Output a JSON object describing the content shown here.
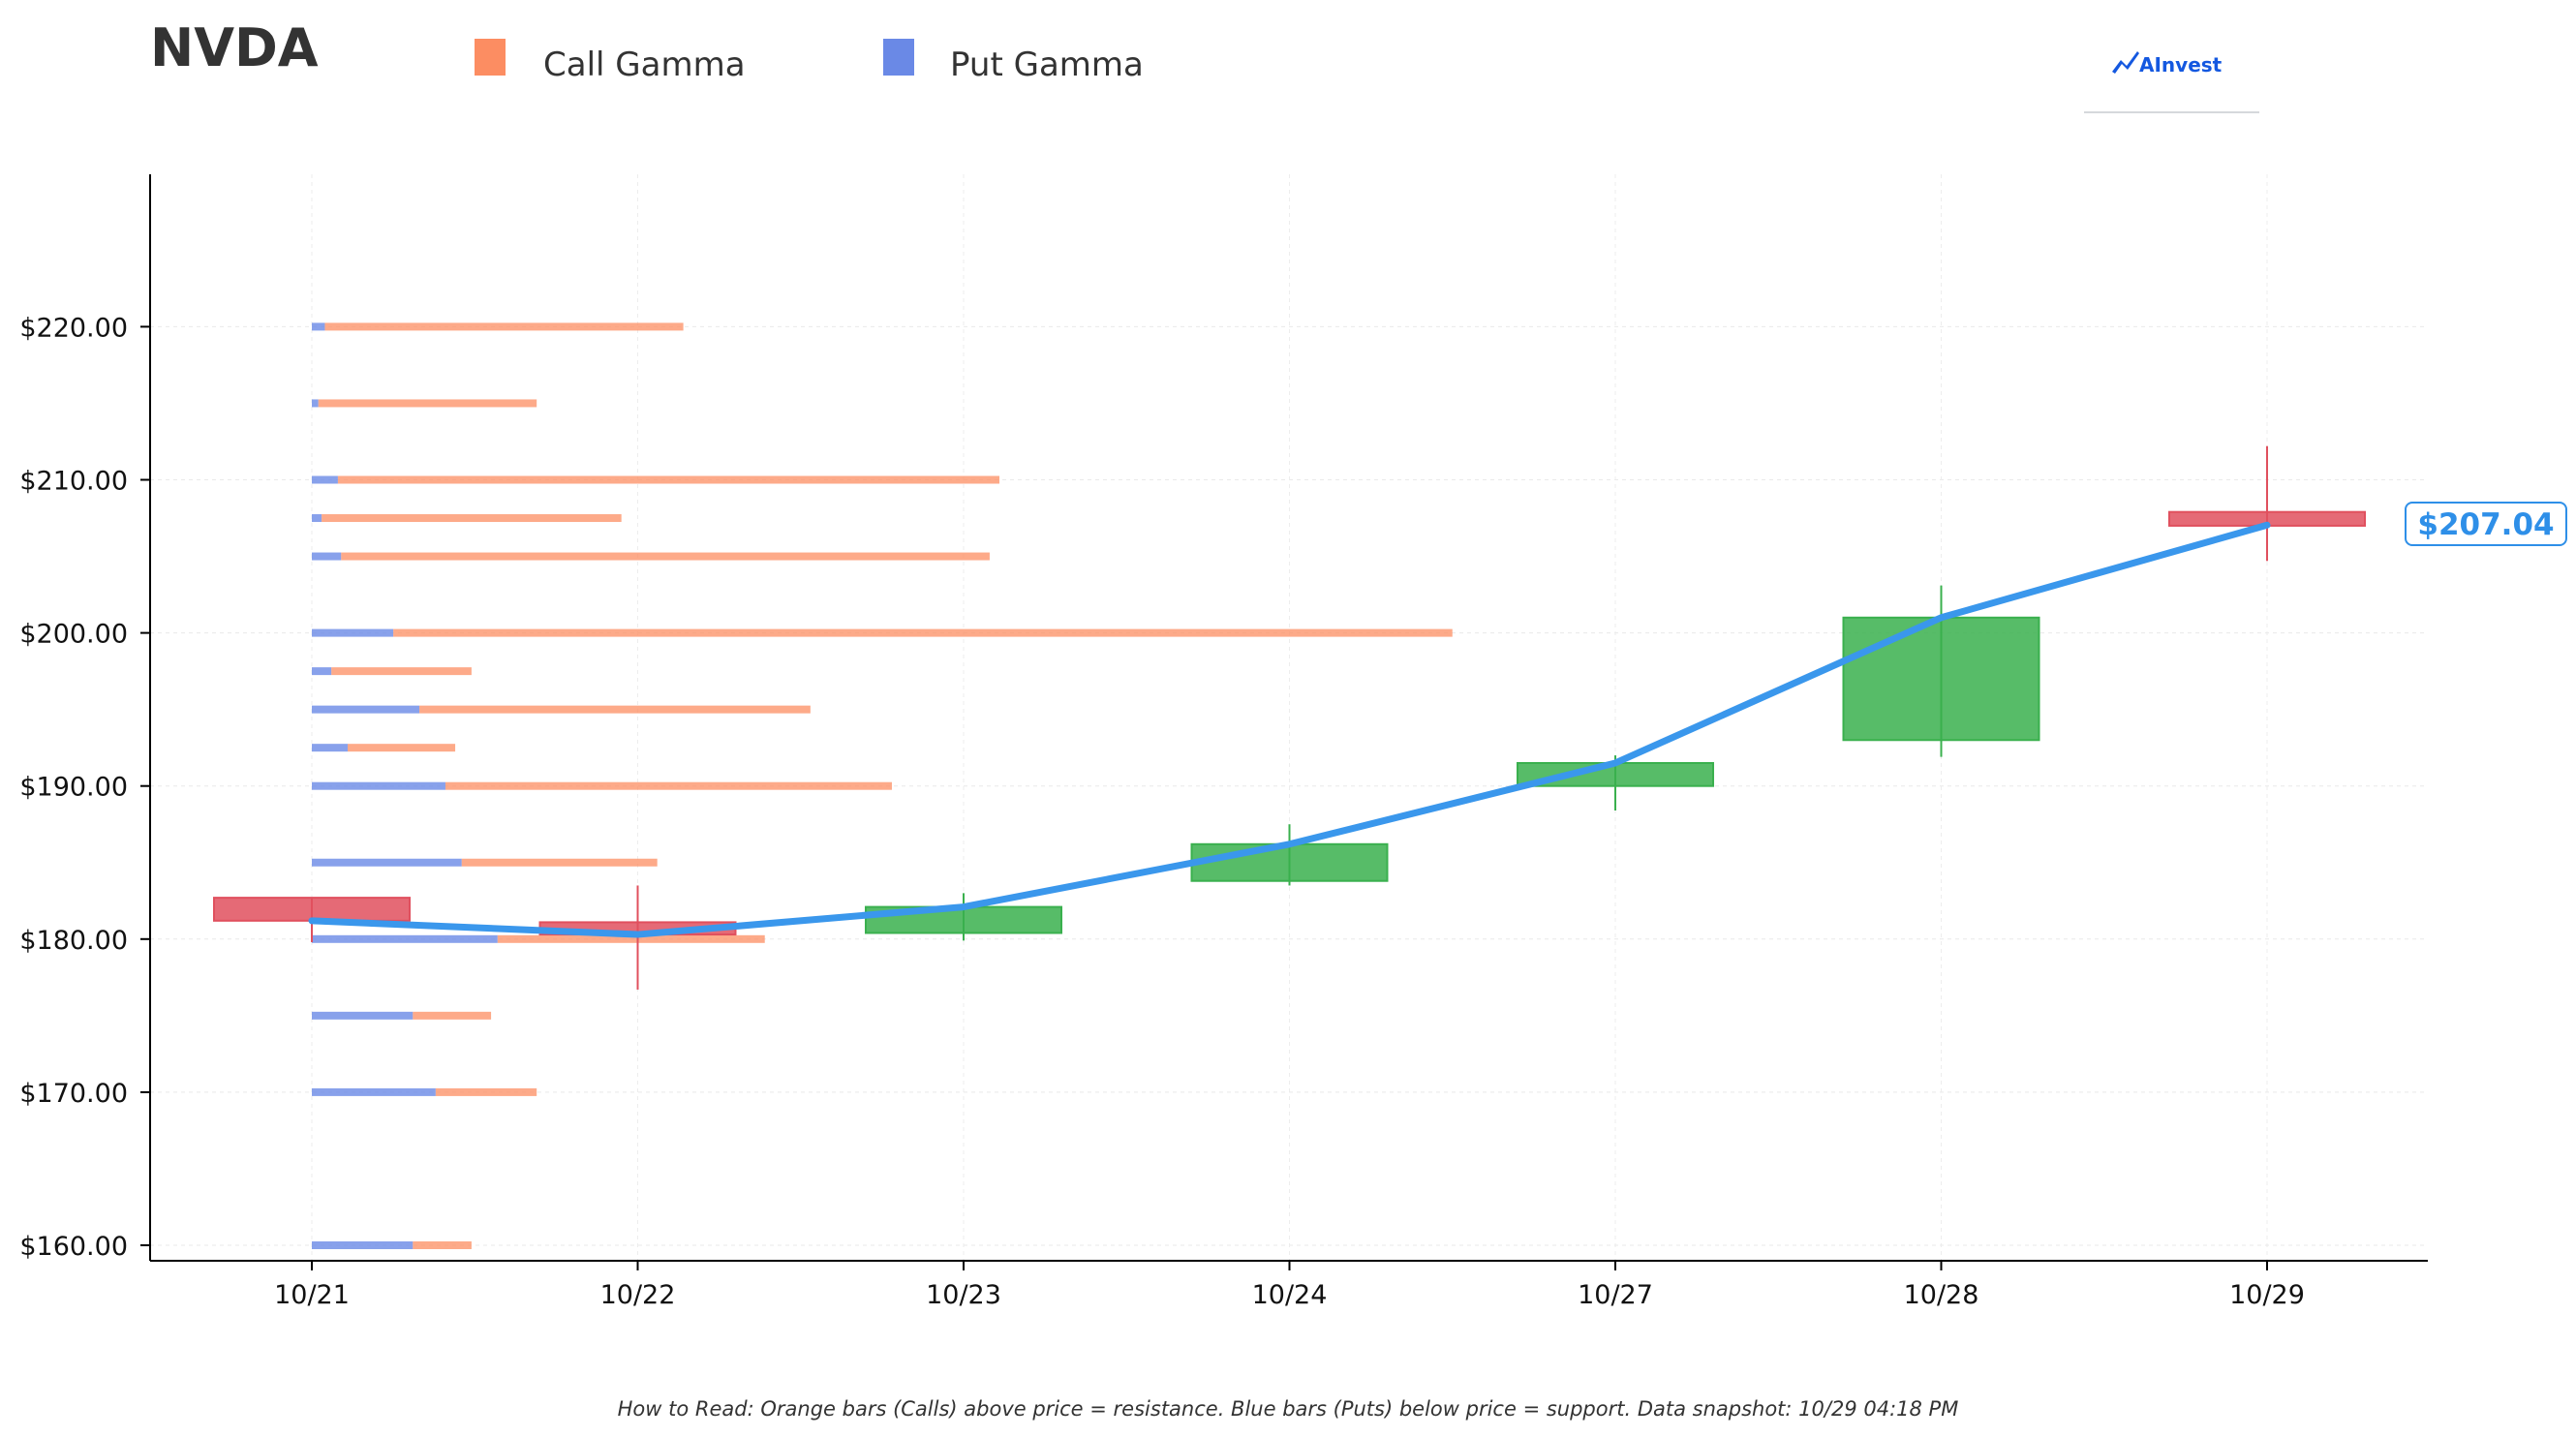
{
  "header": {
    "ticker": "NVDA",
    "logo_text": "AInvest"
  },
  "legend": {
    "call_label": "Call Gamma",
    "put_label": "Put Gamma"
  },
  "footer": {
    "note": "How to Read: Orange bars (Calls) above price = resistance. Blue bars (Puts) below price = support. Data snapshot: 10/29 04:18 PM"
  },
  "colors": {
    "call": "#fc8d62",
    "put": "#6a89e6",
    "up": "#3ab04e",
    "down": "#e0505e",
    "price_line": "#3a97ec",
    "logo": "#1458e0"
  },
  "chart_data": {
    "type": "candlestick",
    "categories": [
      "10/21",
      "10/22",
      "10/23",
      "10/24",
      "10/27",
      "10/28",
      "10/29"
    ],
    "ylim": [
      158,
      230
    ],
    "yticks": [
      160,
      170,
      180,
      190,
      200,
      210,
      220
    ],
    "ytick_labels": [
      "$160.00",
      "$170.00",
      "$180.00",
      "$190.00",
      "$200.00",
      "$210.00",
      "$220.00"
    ],
    "grid": true,
    "legend_position": "top",
    "candles": [
      {
        "date": "10/21",
        "open": 182.7,
        "close": 181.2,
        "high": 182.7,
        "low": 179.8
      },
      {
        "date": "10/22",
        "open": 181.1,
        "close": 180.3,
        "high": 183.5,
        "low": 176.7
      },
      {
        "date": "10/23",
        "open": 180.4,
        "close": 182.1,
        "high": 183.0,
        "low": 179.9
      },
      {
        "date": "10/24",
        "open": 183.8,
        "close": 186.2,
        "high": 187.5,
        "low": 183.5
      },
      {
        "date": "10/27",
        "open": 190.0,
        "close": 191.5,
        "high": 192.0,
        "low": 188.4
      },
      {
        "date": "10/28",
        "open": 193.0,
        "close": 201.0,
        "high": 203.1,
        "low": 191.9
      },
      {
        "date": "10/29",
        "open": 207.9,
        "close": 207.0,
        "high": 212.2,
        "low": 204.7
      }
    ],
    "price_line": [
      181.2,
      180.3,
      182.1,
      186.2,
      191.5,
      201.0,
      207.04
    ],
    "current_price_label": "$207.04",
    "gamma_unit": "category widths",
    "gamma": [
      {
        "strike": 220,
        "put": 0.04,
        "call": 1.1
      },
      {
        "strike": 215,
        "put": 0.02,
        "call": 0.67
      },
      {
        "strike": 210,
        "put": 0.08,
        "call": 2.03
      },
      {
        "strike": 207.5,
        "put": 0.03,
        "call": 0.92
      },
      {
        "strike": 205,
        "put": 0.09,
        "call": 1.99
      },
      {
        "strike": 200,
        "put": 0.25,
        "call": 3.25
      },
      {
        "strike": 197.5,
        "put": 0.06,
        "call": 0.43
      },
      {
        "strike": 195,
        "put": 0.33,
        "call": 1.2
      },
      {
        "strike": 192.5,
        "put": 0.11,
        "call": 0.33
      },
      {
        "strike": 190,
        "put": 0.41,
        "call": 1.37
      },
      {
        "strike": 185,
        "put": 0.46,
        "call": 0.6
      },
      {
        "strike": 180,
        "put": 0.57,
        "call": 0.82
      },
      {
        "strike": 175,
        "put": 0.31,
        "call": 0.24
      },
      {
        "strike": 170,
        "put": 0.38,
        "call": 0.31
      },
      {
        "strike": 160,
        "put": 0.31,
        "call": 0.18
      }
    ]
  }
}
